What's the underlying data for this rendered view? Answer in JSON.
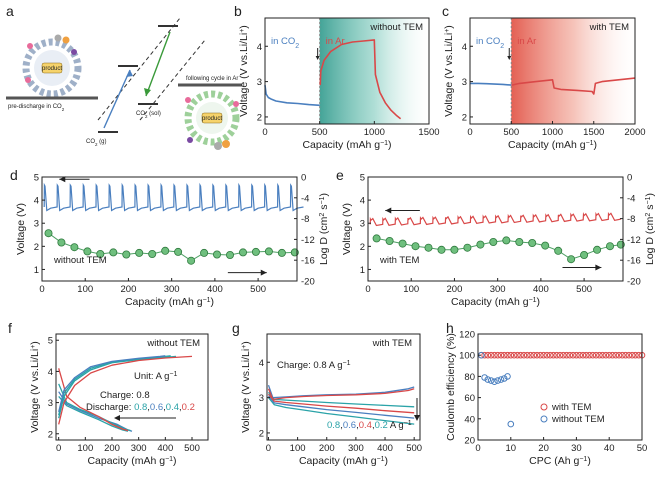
{
  "colors": {
    "blue": "#4a7fbf",
    "red": "#d94848",
    "green": "#4ea064",
    "teal_shade": "#4aa99a",
    "red_shade": "#e8705e",
    "teal": "#2aa3a8",
    "dark": "#222222"
  },
  "panels": {
    "a": {
      "label": "a",
      "texts": {
        "predischarge": "pre-discharge in CO",
        "predischarge_sub": "2",
        "following": "following cycle in Ar",
        "product1": "product",
        "product2": "product",
        "co2g": "CO",
        "co2g_sub": "2",
        "co2g_suffix": " (g)",
        "co2sol": "CO",
        "co2sol_sub": "2",
        "co2sol_suffix": " (sol)"
      }
    },
    "b": {
      "label": "b",
      "left_text": "in CO",
      "left_sub": "2",
      "right_text": "in Ar",
      "shade_text": "without TEM"
    },
    "c": {
      "label": "c",
      "left_text": "in CO",
      "left_sub": "2",
      "right_text": "in Ar",
      "shade_text": "with TEM"
    },
    "d": {
      "label": "d",
      "note": "without TEM"
    },
    "e": {
      "label": "e",
      "note": "with TEM"
    },
    "f": {
      "label": "f",
      "note": "without TEM",
      "unit": "Unit: A g",
      "unit_sup": "−1",
      "charge": "Charge: 0.8",
      "discharge": "Discharge: ",
      "rates": [
        "0.8",
        "0.6",
        "0.4",
        "0.2"
      ]
    },
    "g": {
      "label": "g",
      "note": "with TEM",
      "charge": "Charge: 0.8 A g",
      "charge_sup": "−1",
      "rates": [
        "0.8",
        "0.6",
        "0.4",
        "0.2"
      ],
      "rate_unit": " A g",
      "rate_sup": "−1"
    },
    "h": {
      "label": "h",
      "legend": [
        "with TEM",
        "without TEM"
      ]
    }
  },
  "chart_data": [
    {
      "id": "b",
      "type": "line",
      "xlabel": "Capacity (mAh g",
      "xlabel_sup": "−1",
      "xlabel_end": ")",
      "ylabel": "Voltage (V vs.Li/Li",
      "ylabel_sup": "+",
      "ylabel_end": ")",
      "xlim": [
        0,
        1500
      ],
      "ylim": [
        1.8,
        4.8
      ],
      "xticks": [
        0,
        500,
        1000,
        1500
      ],
      "yticks": [
        2,
        3,
        4
      ],
      "shade_from": 500,
      "series": [
        {
          "x": [
            0,
            10,
            30,
            60,
            100,
            200,
            300,
            400,
            500
          ],
          "y": [
            2.9,
            2.65,
            2.55,
            2.5,
            2.45,
            2.4,
            2.38,
            2.35,
            2.33
          ],
          "color": "blue"
        },
        {
          "x": [
            505,
            510,
            540,
            600,
            700,
            800,
            900,
            1000,
            1010,
            1050,
            1100,
            1150,
            1200,
            1240
          ],
          "y": [
            2.9,
            3.3,
            3.6,
            3.85,
            4.05,
            4.12,
            4.15,
            4.18,
            3.2,
            2.7,
            2.4,
            2.2,
            2.05,
            1.95
          ],
          "color": "red"
        }
      ]
    },
    {
      "id": "c",
      "type": "line",
      "xlabel": "Capacity (mAh g",
      "xlabel_sup": "−1",
      "xlabel_end": ")",
      "ylabel": "Voltage (V vs.Li/Li",
      "ylabel_sup": "+",
      "ylabel_end": ")",
      "xlim": [
        0,
        2000
      ],
      "ylim": [
        1.8,
        4.8
      ],
      "xticks": [
        0,
        500,
        1000,
        1500,
        2000
      ],
      "yticks": [
        2,
        3,
        4
      ],
      "shade_from": 500,
      "series": [
        {
          "x": [
            0,
            100,
            200,
            300,
            400,
            500
          ],
          "y": [
            2.95,
            2.95,
            2.94,
            2.93,
            2.92,
            2.9
          ],
          "color": "blue"
        },
        {
          "x": [
            505,
            600,
            800,
            1000,
            1020,
            1100,
            1300,
            1480,
            1500,
            1520,
            1600,
            1800,
            2000
          ],
          "y": [
            2.9,
            2.95,
            3.0,
            3.05,
            2.82,
            2.78,
            2.75,
            2.72,
            2.65,
            2.95,
            3.0,
            3.05,
            3.1
          ],
          "color": "red"
        }
      ]
    },
    {
      "id": "d",
      "type": "line",
      "xlabel": "Capacity (mAh g",
      "xlabel_sup": "−1",
      "xlabel_end": ")",
      "ylabel": "Voltage (V)",
      "y2label": "Log D (cm",
      "y2label_sup": "2",
      "y2label_mid": " s",
      "y2label_sup2": "−1",
      "y2label_end": ")",
      "xlim": [
        0,
        590
      ],
      "ylim": [
        0.5,
        5
      ],
      "y2lim": [
        -20,
        0
      ],
      "xticks": [
        0,
        100,
        200,
        300,
        400,
        500
      ],
      "yticks": [
        1,
        2,
        3,
        4,
        5
      ],
      "y2ticks": [
        0,
        -4,
        -8,
        -12,
        -16,
        -20
      ],
      "titration": {
        "count": 20,
        "start": 5,
        "step": 30,
        "base": 3.7,
        "peak": 4.65,
        "drop": 3.2,
        "color": "blue"
      },
      "logd": {
        "x": [
          15,
          45,
          75,
          105,
          135,
          165,
          195,
          225,
          255,
          285,
          315,
          345,
          375,
          405,
          435,
          465,
          495,
          525,
          555,
          585
        ],
        "y": [
          -10.8,
          -12.6,
          -13.5,
          -14.3,
          -14.8,
          -14.5,
          -14.9,
          -14.6,
          -14.8,
          -14.2,
          -14.4,
          -16.1,
          -14.6,
          -14.9,
          -15.0,
          -14.5,
          -14.4,
          -14.3,
          -14.6,
          -14.5
        ],
        "color": "green"
      },
      "arrows": [
        {
          "from_x": 110,
          "to_x": 40,
          "y": 4.9,
          "axis": "left"
        },
        {
          "from_x": 430,
          "to_x": 520,
          "y": -18.4,
          "axis": "right"
        }
      ]
    },
    {
      "id": "e",
      "type": "line",
      "xlabel": "Capacity (mAh g",
      "xlabel_sup": "−1",
      "xlabel_end": ")",
      "ylabel": "Voltage (V)",
      "y2label": "Log D (cm",
      "y2label_sup": "2",
      "y2label_mid": " s",
      "y2label_sup2": "−1",
      "y2label_end": ")",
      "xlim": [
        0,
        590
      ],
      "ylim": [
        0.5,
        5
      ],
      "y2lim": [
        -20,
        0
      ],
      "xticks": [
        0,
        100,
        200,
        300,
        400,
        500
      ],
      "yticks": [
        1,
        2,
        3,
        4,
        5
      ],
      "y2ticks": [
        0,
        -4,
        -8,
        -12,
        -16,
        -20
      ],
      "titration": {
        "count": 20,
        "start": 5,
        "step": 29,
        "base": 2.95,
        "peak": 3.18,
        "drop": 2.85,
        "rise": 0.012,
        "color": "red"
      },
      "logd": {
        "x": [
          20,
          50,
          80,
          110,
          140,
          170,
          200,
          230,
          260,
          290,
          320,
          350,
          380,
          410,
          440,
          470,
          500,
          530,
          560,
          585
        ],
        "y": [
          -11.8,
          -12.3,
          -12.8,
          -13.3,
          -13.6,
          -14.0,
          -14.0,
          -13.6,
          -13.0,
          -12.5,
          -12.2,
          -12.5,
          -12.7,
          -13.2,
          -14.2,
          -15.8,
          -15.0,
          -14.0,
          -13.3,
          -13.0
        ],
        "color": "green"
      },
      "arrows": [
        {
          "from_x": 120,
          "to_x": 40,
          "y": 3.55,
          "axis": "left"
        },
        {
          "from_x": 450,
          "to_x": 540,
          "y": -17.4,
          "axis": "right"
        }
      ]
    },
    {
      "id": "f",
      "type": "line",
      "xlabel": "Capacity (mAh g",
      "xlabel_sup": "−1",
      "xlabel_end": ")",
      "ylabel": "Voltage (V vs.Li/Li",
      "ylabel_sup": "+",
      "ylabel_end": ")",
      "xlim": [
        -10,
        560
      ],
      "ylim": [
        1.8,
        5.2
      ],
      "xticks": [
        0,
        100,
        200,
        300,
        400,
        500
      ],
      "yticks": [
        2,
        3,
        4,
        5
      ],
      "discharge": [
        {
          "rate": "0.8",
          "color": "teal",
          "x": [
            0,
            30,
            80,
            150,
            200,
            240,
            260
          ],
          "y": [
            3.2,
            2.9,
            2.7,
            2.45,
            2.25,
            2.12,
            2.08
          ]
        },
        {
          "rate": "0.6",
          "color": "blue",
          "x": [
            0,
            30,
            80,
            150,
            220,
            260,
            275
          ],
          "y": [
            3.35,
            2.95,
            2.75,
            2.5,
            2.3,
            2.12,
            2.08
          ]
        },
        {
          "rate": "0.4",
          "color": "teal",
          "x": [
            0,
            30,
            80,
            150,
            210,
            250,
            270
          ],
          "y": [
            3.6,
            3.0,
            2.78,
            2.55,
            2.3,
            2.15,
            2.1
          ]
        },
        {
          "rate": "0.2",
          "color": "red",
          "x": [
            0,
            30,
            80,
            150,
            200,
            240,
            260
          ],
          "y": [
            4.1,
            3.2,
            2.85,
            2.55,
            2.3,
            2.15,
            2.1
          ]
        }
      ],
      "charge": [
        {
          "color": "teal",
          "x": [
            0,
            20,
            60,
            120,
            200,
            300,
            400,
            420
          ],
          "y": [
            2.6,
            3.3,
            3.75,
            4.1,
            4.3,
            4.4,
            4.48,
            4.5
          ]
        },
        {
          "color": "blue",
          "x": [
            0,
            20,
            60,
            120,
            200,
            300,
            380,
            400
          ],
          "y": [
            2.7,
            3.4,
            3.8,
            4.15,
            4.32,
            4.42,
            4.48,
            4.5
          ]
        },
        {
          "color": "teal",
          "x": [
            0,
            20,
            60,
            120,
            200,
            300,
            400,
            440
          ],
          "y": [
            2.5,
            3.2,
            3.7,
            4.05,
            4.28,
            4.38,
            4.45,
            4.48
          ]
        },
        {
          "color": "red",
          "x": [
            0,
            20,
            60,
            120,
            200,
            300,
            400,
            500
          ],
          "y": [
            2.3,
            3.0,
            3.55,
            3.95,
            4.2,
            4.35,
            4.43,
            4.48
          ]
        }
      ]
    },
    {
      "id": "g",
      "type": "line",
      "xlabel": "Capacity (mAh g",
      "xlabel_sup": "−1",
      "xlabel_end": ")",
      "ylabel": "Voltage (V vs.Li/Li",
      "ylabel_sup": "+",
      "ylabel_end": ")",
      "xlim": [
        -5,
        520
      ],
      "ylim": [
        1.8,
        4.8
      ],
      "xticks": [
        0,
        100,
        200,
        300,
        400,
        500
      ],
      "yticks": [
        2,
        3,
        4
      ],
      "discharge": [
        {
          "rate": "0.8",
          "color": "teal",
          "x": [
            0,
            20,
            60,
            120,
            200,
            300,
            400,
            500
          ],
          "y": [
            3.0,
            2.8,
            2.72,
            2.65,
            2.55,
            2.45,
            2.35,
            2.25
          ]
        },
        {
          "rate": "0.6",
          "color": "blue",
          "x": [
            0,
            20,
            60,
            120,
            200,
            300,
            400,
            500
          ],
          "y": [
            3.05,
            2.85,
            2.8,
            2.74,
            2.66,
            2.58,
            2.5,
            2.42
          ]
        },
        {
          "rate": "0.4",
          "color": "red",
          "x": [
            0,
            20,
            60,
            120,
            200,
            300,
            400,
            500
          ],
          "y": [
            3.1,
            2.9,
            2.86,
            2.82,
            2.76,
            2.7,
            2.63,
            2.57
          ]
        },
        {
          "rate": "0.2",
          "color": "teal",
          "x": [
            0,
            20,
            60,
            120,
            200,
            300,
            400,
            500
          ],
          "y": [
            3.15,
            2.95,
            2.93,
            2.9,
            2.86,
            2.82,
            2.78,
            2.74
          ]
        }
      ],
      "charge": [
        {
          "color": "blue",
          "x": [
            0,
            15,
            60,
            120,
            200,
            300,
            400,
            480,
            500
          ],
          "y": [
            3.35,
            3.0,
            3.02,
            3.05,
            3.08,
            3.1,
            3.15,
            3.25,
            3.3
          ]
        },
        {
          "color": "red",
          "x": [
            0,
            15,
            60,
            120,
            200,
            300,
            400,
            480,
            500
          ],
          "y": [
            3.25,
            2.95,
            3.0,
            3.03,
            3.06,
            3.08,
            3.12,
            3.2,
            3.25
          ]
        }
      ]
    },
    {
      "id": "h",
      "type": "scatter",
      "xlabel": "CPC (Ah g",
      "xlabel_sup": "−1",
      "xlabel_end": ")",
      "ylabel": "Coulomb efficiency (%)",
      "xlim": [
        0,
        50
      ],
      "ylim": [
        20,
        120
      ],
      "xticks": [
        0,
        10,
        20,
        30,
        40,
        50
      ],
      "yticks": [
        20,
        40,
        60,
        80,
        100,
        120
      ],
      "series": [
        {
          "name": "with TEM",
          "color": "red",
          "x": [
            1,
            2,
            3,
            4,
            5,
            6,
            7,
            8,
            9,
            10,
            11,
            12,
            13,
            14,
            15,
            16,
            17,
            18,
            19,
            20,
            21,
            22,
            23,
            24,
            25,
            26,
            27,
            28,
            29,
            30,
            31,
            32,
            33,
            34,
            35,
            36,
            37,
            38,
            39,
            40,
            41,
            42,
            43,
            44,
            45,
            46,
            47,
            48,
            49,
            50
          ],
          "y": [
            100,
            100,
            100,
            100,
            100,
            100,
            100,
            100,
            100,
            100,
            100,
            100,
            100,
            100,
            100,
            100,
            100,
            100,
            100,
            100,
            100,
            100,
            100,
            100,
            100,
            100,
            100,
            100,
            100,
            100,
            100,
            100,
            100,
            100,
            100,
            100,
            100,
            100,
            100,
            100,
            100,
            100,
            100,
            100,
            100,
            100,
            100,
            100,
            100,
            100
          ]
        },
        {
          "name": "without TEM",
          "color": "blue",
          "x": [
            1,
            2,
            3,
            4,
            5,
            6,
            7,
            8,
            9,
            10
          ],
          "y": [
            100,
            79,
            77,
            76,
            75,
            76,
            77,
            78,
            80,
            35
          ]
        }
      ]
    }
  ]
}
